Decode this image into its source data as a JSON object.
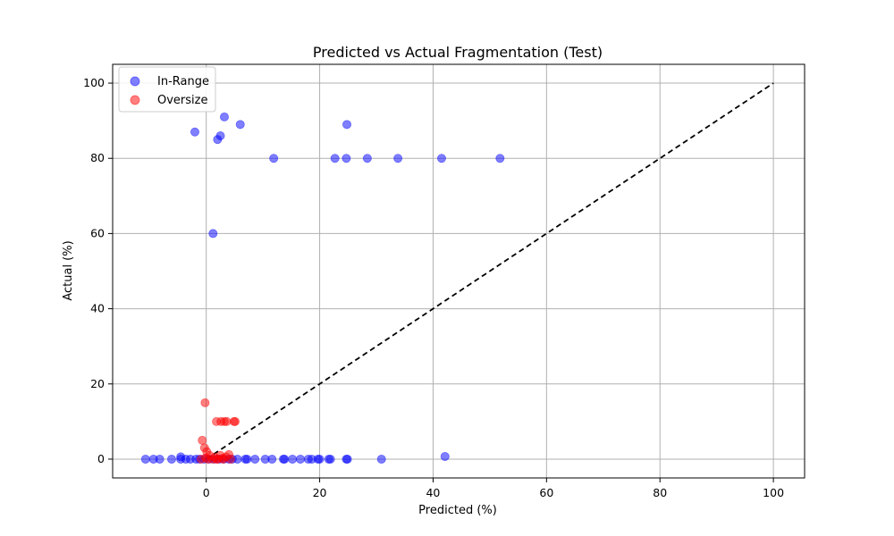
{
  "chart_data": {
    "type": "scatter",
    "title": "Predicted vs Actual Fragmentation (Test)",
    "xlabel": "Predicted (%)",
    "ylabel": "Actual (%)",
    "xlim": [
      -16.5,
      105.5
    ],
    "ylim": [
      -5,
      105
    ],
    "xticks": [
      0,
      20,
      40,
      60,
      80,
      100
    ],
    "yticks": [
      0,
      20,
      40,
      60,
      80,
      100
    ],
    "grid": true,
    "legend_position": "top-left",
    "reference_line": {
      "style": "dashed",
      "color": "#000000",
      "x": [
        0,
        100
      ],
      "y": [
        0,
        100
      ]
    },
    "series": [
      {
        "name": "In-Range",
        "color": "#0000ff",
        "opacity": 0.5,
        "points": [
          [
            -2,
            87
          ],
          [
            3.2,
            91
          ],
          [
            2.5,
            86
          ],
          [
            2,
            85
          ],
          [
            6,
            89
          ],
          [
            24.8,
            89
          ],
          [
            1.2,
            60
          ],
          [
            11.9,
            80
          ],
          [
            22.7,
            80
          ],
          [
            24.7,
            80
          ],
          [
            28.4,
            80
          ],
          [
            33.8,
            80
          ],
          [
            41.5,
            80
          ],
          [
            51.8,
            80
          ],
          [
            -10.7,
            0
          ],
          [
            -9.3,
            0
          ],
          [
            -8.2,
            0
          ],
          [
            -6.1,
            0
          ],
          [
            -4.5,
            0.6
          ],
          [
            -4.5,
            0
          ],
          [
            -3.6,
            0
          ],
          [
            -2.8,
            0
          ],
          [
            -1.8,
            0
          ],
          [
            -1.2,
            0
          ],
          [
            -0.4,
            0
          ],
          [
            0.5,
            0
          ],
          [
            1.4,
            0
          ],
          [
            2.3,
            0
          ],
          [
            3.1,
            0
          ],
          [
            4.0,
            0
          ],
          [
            4.6,
            0
          ],
          [
            5.5,
            0
          ],
          [
            6.9,
            0
          ],
          [
            7.2,
            0
          ],
          [
            8.6,
            0
          ],
          [
            10.4,
            0
          ],
          [
            11.6,
            0
          ],
          [
            13.6,
            0
          ],
          [
            13.8,
            0
          ],
          [
            15.2,
            0
          ],
          [
            16.6,
            0
          ],
          [
            18.0,
            0
          ],
          [
            18.6,
            0
          ],
          [
            19.7,
            0
          ],
          [
            20.0,
            0
          ],
          [
            21.6,
            0
          ],
          [
            21.9,
            0
          ],
          [
            24.7,
            0
          ],
          [
            24.9,
            0
          ],
          [
            30.9,
            0
          ],
          [
            42.1,
            0.7
          ]
        ]
      },
      {
        "name": "Oversize",
        "color": "#ff0000",
        "opacity": 0.5,
        "points": [
          [
            -0.2,
            15
          ],
          [
            1.8,
            10
          ],
          [
            2.6,
            10
          ],
          [
            3.2,
            10
          ],
          [
            3.6,
            10
          ],
          [
            4.9,
            10
          ],
          [
            5.1,
            10
          ],
          [
            -0.7,
            5
          ],
          [
            -0.3,
            3
          ],
          [
            0.1,
            2
          ],
          [
            0.6,
            1
          ],
          [
            1.1,
            0
          ],
          [
            1.5,
            0.5
          ],
          [
            2.0,
            0
          ],
          [
            2.5,
            1
          ],
          [
            3.0,
            0
          ],
          [
            3.5,
            0.6
          ],
          [
            4.0,
            1.2
          ],
          [
            4.3,
            0
          ],
          [
            -0.9,
            0
          ],
          [
            -0.1,
            0.3
          ],
          [
            0.3,
            0
          ],
          [
            1.8,
            0
          ],
          [
            2.8,
            0.2
          ]
        ]
      }
    ]
  }
}
